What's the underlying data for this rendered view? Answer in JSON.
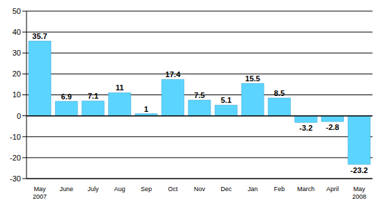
{
  "chart_data": {
    "type": "bar",
    "categories": [
      "May 2007",
      "June",
      "July",
      "Aug",
      "Sep",
      "Oct",
      "Nov",
      "Dec",
      "Jan",
      "Feb",
      "March",
      "April",
      "May 2008"
    ],
    "values": [
      35.7,
      6.9,
      7.1,
      11,
      1,
      17.4,
      7.5,
      5.1,
      15.5,
      8.5,
      -3.2,
      -2.8,
      -23.2
    ],
    "color": "#5bd5ff",
    "ylim": [
      -30,
      50
    ],
    "yticks": [
      -30,
      -20,
      -10,
      0,
      10,
      20,
      30,
      40,
      50
    ],
    "grid": true,
    "data_labels": true
  }
}
